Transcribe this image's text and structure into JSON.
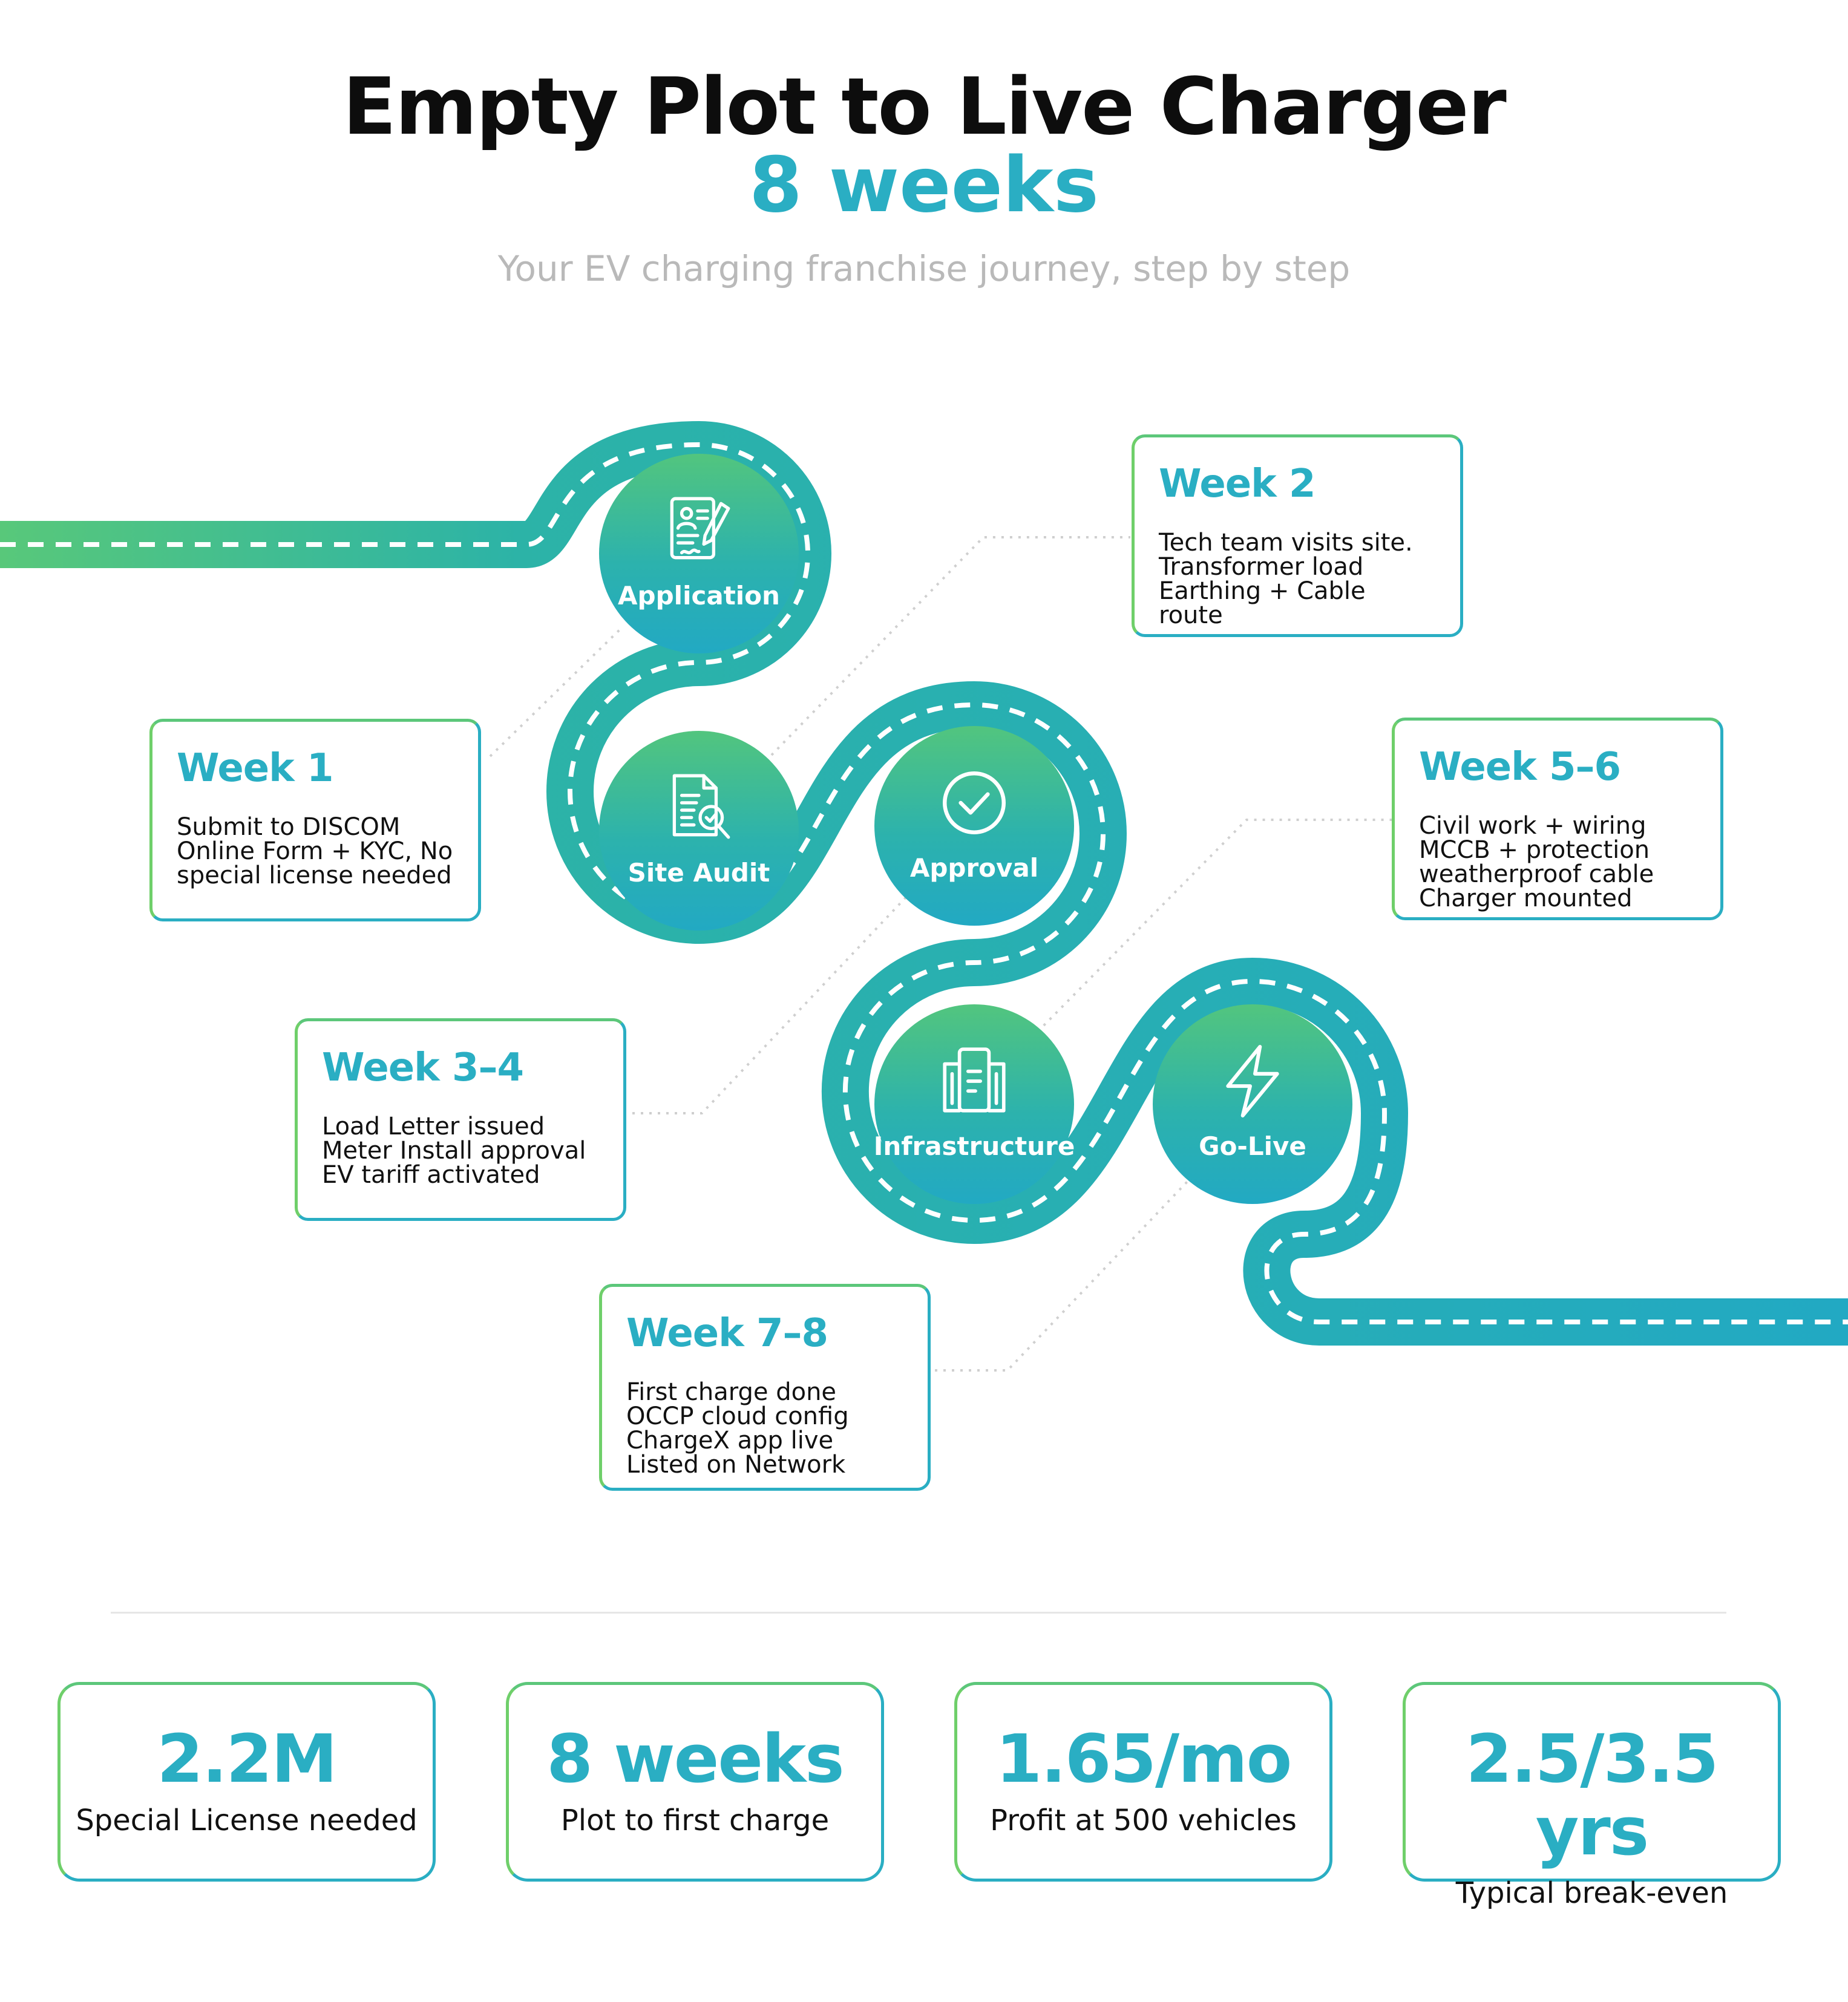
{
  "header": {
    "title": "Empty Plot to Live Charger",
    "highlight": "8 weeks",
    "subtitle": "Your EV charging franchise journey, step by step"
  },
  "colors": {
    "teal": "#2aaec3",
    "green": "#52c57e",
    "text": "#111111",
    "muted": "#b9b9b9"
  },
  "steps": [
    {
      "label": "Application",
      "icon": "application-form-icon"
    },
    {
      "label": "Site Audit",
      "icon": "document-search-icon"
    },
    {
      "label": "Approval",
      "icon": "check-circle-icon"
    },
    {
      "label": "Infrastructure",
      "icon": "building-icon"
    },
    {
      "label": "Go-Live",
      "icon": "lightning-bolt-icon"
    }
  ],
  "weeks": [
    {
      "title": "Week 1",
      "lines": [
        "Submit to DISCOM",
        "Online Form + KYC, No",
        "special license needed"
      ]
    },
    {
      "title": "Week 2",
      "lines": [
        "Tech team visits site.",
        "Transformer load",
        "Earthing + Cable route"
      ]
    },
    {
      "title": "Week 3–4",
      "lines": [
        "Load Letter issued",
        "Meter Install approval",
        "EV tariff activated"
      ]
    },
    {
      "title": "Week 5–6",
      "lines": [
        "Civil work + wiring",
        "MCCB + protection",
        "weatherproof cable",
        "Charger mounted"
      ]
    },
    {
      "title": "Week 7–8",
      "lines": [
        "First charge done",
        "OCCP cloud config",
        "ChargeX app live",
        "Listed on Network"
      ]
    }
  ],
  "stats": [
    {
      "value": "2.2M",
      "label": "Special License needed"
    },
    {
      "value": "8 weeks",
      "label": "Plot to first charge"
    },
    {
      "value": "1.65/mo",
      "label": "Profit at 500 vehicles"
    },
    {
      "value": "2.5/3.5 yrs",
      "label": "Typical break-even"
    }
  ]
}
